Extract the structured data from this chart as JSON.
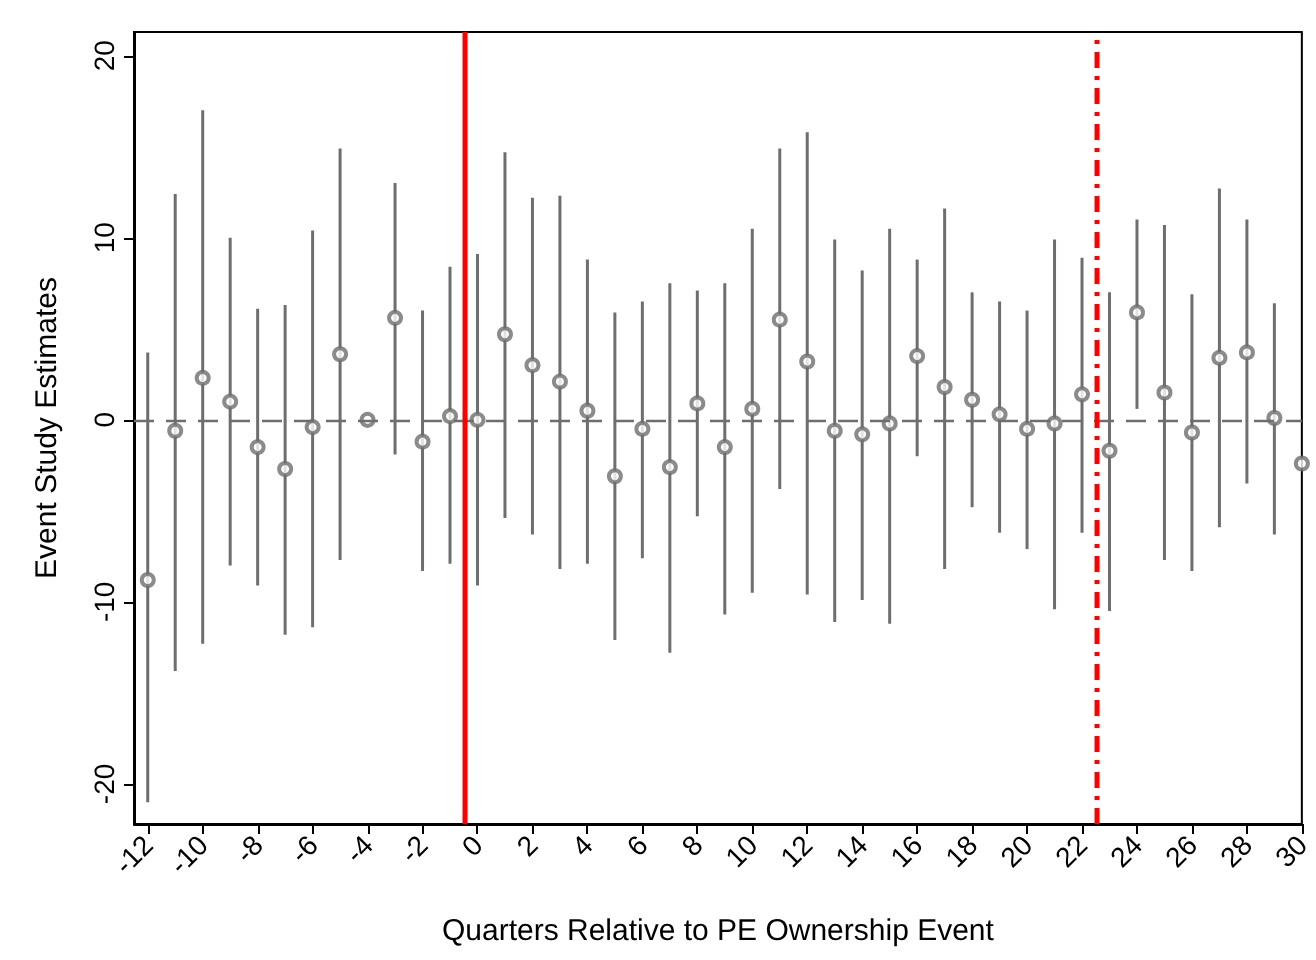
{
  "chart_data": {
    "type": "scatter",
    "xlabel": "Quarters Relative to PE Ownership Event",
    "ylabel": "Event Study Estimates",
    "x": [
      -12,
      -11,
      -10,
      -9,
      -8,
      -7,
      -6,
      -5,
      -4,
      -3,
      -2,
      -1,
      0,
      1,
      2,
      3,
      4,
      5,
      6,
      7,
      8,
      9,
      10,
      11,
      12,
      13,
      14,
      15,
      16,
      17,
      18,
      19,
      20,
      21,
      22,
      23,
      24,
      25,
      26,
      27,
      28,
      29,
      30
    ],
    "series": [
      {
        "color": "#6e6e6e",
        "values": [
          -8.8,
          -0.6,
          2.3,
          1.0,
          -1.5,
          -2.7,
          -0.4,
          3.6,
          0,
          5.6,
          -1.2,
          0.2,
          0,
          4.7,
          3.0,
          2.1,
          0.5,
          -3.1,
          -0.5,
          -2.6,
          0.9,
          -1.5,
          0.6,
          5.5,
          3.2,
          -0.6,
          -0.8,
          -0.2,
          3.5,
          1.8,
          1.1,
          0.3,
          -0.5,
          -0.2,
          1.4,
          -1.7,
          5.9,
          1.5,
          -0.7,
          3.4,
          3.7,
          0.1,
          -2.4
        ],
        "errors": [
          [
            -21,
            3.7
          ],
          [
            -13.8,
            12.4
          ],
          [
            -12.3,
            17
          ],
          [
            -8.0,
            10
          ],
          [
            -9.1,
            6.1
          ],
          [
            -11.8,
            6.3
          ],
          [
            -11.4,
            10.4
          ],
          [
            -7.7,
            14.9
          ],
          null,
          [
            -1.9,
            13
          ],
          [
            -8.3,
            6
          ],
          [
            -7.9,
            8.4
          ],
          [
            -9.1,
            9.1
          ],
          [
            -5.4,
            14.7
          ],
          [
            -6.3,
            12.2
          ],
          [
            -8.2,
            12.3
          ],
          [
            -7.9,
            8.8
          ],
          [
            -12.1,
            5.9
          ],
          [
            -7.6,
            6.5
          ],
          [
            -12.8,
            7.5
          ],
          [
            -5.3,
            7.1
          ],
          [
            -10.7,
            7.5
          ],
          [
            -9.5,
            10.5
          ],
          [
            -3.8,
            14.9
          ],
          [
            -9.6,
            15.8
          ],
          [
            -11.1,
            9.9
          ],
          [
            -9.9,
            8.2
          ],
          [
            -11.2,
            10.5
          ],
          [
            -2.0,
            8.8
          ],
          [
            -8.2,
            11.6
          ],
          [
            -4.8,
            7.0
          ],
          [
            -6.2,
            6.5
          ],
          [
            -7.1,
            6.0
          ],
          [
            -10.4,
            9.9
          ],
          [
            -6.2,
            8.9
          ],
          [
            -10.5,
            7.0
          ],
          [
            0.6,
            11.0
          ],
          [
            -7.7,
            10.7
          ],
          [
            -8.3,
            6.9
          ],
          [
            -5.9,
            12.7
          ],
          [
            -3.5,
            11.0
          ],
          [
            -6.3,
            6.4
          ],
          null
        ]
      }
    ],
    "xlim": [
      -12.5,
      30
    ],
    "xticks": [
      -12,
      -10,
      -8,
      -6,
      -4,
      -2,
      0,
      2,
      4,
      6,
      8,
      10,
      12,
      14,
      16,
      18,
      20,
      22,
      24,
      26,
      28,
      30
    ],
    "ylim": [
      -22.2,
      21.3
    ],
    "yticks": [
      -20,
      -10,
      0,
      10,
      20
    ],
    "ref_lines": [
      {
        "axis": "y",
        "value": 0,
        "color": "#6e6e6e",
        "line_style": "dashed"
      },
      {
        "axis": "x",
        "value": -0.5,
        "color": "#ff0000",
        "line_style": "solid"
      },
      {
        "axis": "x",
        "value": 22.5,
        "color": "#ff0000",
        "line_style": "dashed"
      }
    ],
    "marker": "circle",
    "grid": false
  }
}
